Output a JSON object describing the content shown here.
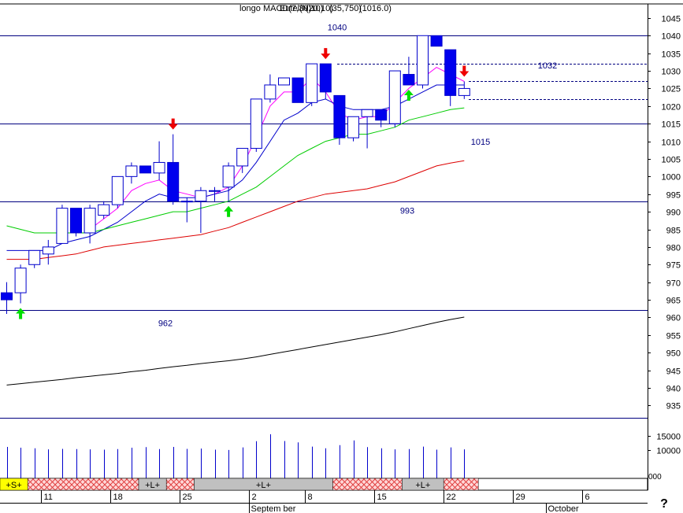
{
  "header": {
    "overlapping_titles": [
      "longo",
      "MACD(7,30,10)",
      "Eutel(N)",
      "(20,10)",
      "(35,750)",
      "(1016.0)"
    ]
  },
  "chart_data": {
    "type": "candlestick",
    "price_axis": {
      "ylim": [
        931.5,
        1049
      ],
      "ticks": [
        935,
        940,
        945,
        950,
        955,
        960,
        965,
        970,
        975,
        980,
        985,
        990,
        995,
        1000,
        1005,
        1010,
        1015,
        1020,
        1025,
        1030,
        1035,
        1040,
        1045
      ]
    },
    "volume_axis": {
      "ylim": [
        0,
        16500
      ],
      "ticks": [
        {
          "value": 10000,
          "label": "10000"
        },
        {
          "value": 15000,
          "label": "15000"
        }
      ],
      "corner_label": "000"
    },
    "x_axis": {
      "labels": [
        {
          "index": 3,
          "text": "11"
        },
        {
          "index": 8,
          "text": "18"
        },
        {
          "index": 13,
          "text": "25"
        },
        {
          "index": 18,
          "text": "2"
        },
        {
          "index": 22,
          "text": "8"
        },
        {
          "index": 27,
          "text": "15"
        },
        {
          "index": 32,
          "text": "22"
        },
        {
          "index": 37,
          "text": "29"
        },
        {
          "index": 42,
          "text": "6"
        }
      ],
      "months": [
        {
          "index": 18,
          "text": "Septem ber"
        },
        {
          "index": 39.4,
          "text": "October"
        }
      ]
    },
    "help_glyph": "?",
    "candles": [
      {
        "o": 967,
        "h": 970,
        "l": 961,
        "c": 965
      },
      {
        "o": 967,
        "h": 975,
        "l": 964,
        "c": 974
      },
      {
        "o": 975,
        "h": 979,
        "l": 974,
        "c": 979
      },
      {
        "o": 978,
        "h": 982,
        "l": 975,
        "c": 980
      },
      {
        "o": 981,
        "h": 992,
        "l": 981,
        "c": 991
      },
      {
        "o": 991,
        "h": 991,
        "l": 983,
        "c": 984
      },
      {
        "o": 984,
        "h": 992,
        "l": 981,
        "c": 991
      },
      {
        "o": 989,
        "h": 993,
        "l": 988,
        "c": 992
      },
      {
        "o": 992,
        "h": 1000,
        "l": 991,
        "c": 1000
      },
      {
        "o": 1000,
        "h": 1004,
        "l": 998,
        "c": 1003
      },
      {
        "o": 1003,
        "h": 1003,
        "l": 1001,
        "c": 1001
      },
      {
        "o": 1001,
        "h": 1010,
        "l": 999,
        "c": 1004
      },
      {
        "o": 1004,
        "h": 1012,
        "l": 992,
        "c": 993
      },
      {
        "o": 993,
        "h": 994,
        "l": 987,
        "c": 993
      },
      {
        "o": 993,
        "h": 997,
        "l": 984,
        "c": 996
      },
      {
        "o": 996,
        "h": 997,
        "l": 993,
        "c": 996
      },
      {
        "o": 997,
        "h": 1004,
        "l": 993,
        "c": 1003
      },
      {
        "o": 1003,
        "h": 1008,
        "l": 1001,
        "c": 1008
      },
      {
        "o": 1008,
        "h": 1022,
        "l": 1007,
        "c": 1022
      },
      {
        "o": 1022,
        "h": 1029,
        "l": 1021,
        "c": 1026
      },
      {
        "o": 1026,
        "h": 1028,
        "l": 1026,
        "c": 1028
      },
      {
        "o": 1028,
        "h": 1028,
        "l": 1021,
        "c": 1021
      },
      {
        "o": 1021,
        "h": 1032,
        "l": 1020,
        "c": 1032
      },
      {
        "o": 1032,
        "h": 1032,
        "l": 1022,
        "c": 1024
      },
      {
        "o": 1023,
        "h": 1023,
        "l": 1009,
        "c": 1011
      },
      {
        "o": 1011,
        "h": 1017,
        "l": 1010,
        "c": 1017
      },
      {
        "o": 1017,
        "h": 1019,
        "l": 1008,
        "c": 1019
      },
      {
        "o": 1019,
        "h": 1019,
        "l": 1014,
        "c": 1016
      },
      {
        "o": 1015,
        "h": 1030,
        "l": 1014,
        "c": 1030
      },
      {
        "o": 1029,
        "h": 1034,
        "l": 1026,
        "c": 1026
      },
      {
        "o": 1026,
        "h": 1040,
        "l": 1025,
        "c": 1040
      },
      {
        "o": 1040,
        "h": 1040,
        "l": 1037,
        "c": 1037
      },
      {
        "o": 1036,
        "h": 1036,
        "l": 1020,
        "c": 1023
      },
      {
        "o": 1023,
        "h": 1027,
        "l": 1022,
        "c": 1025
      }
    ],
    "volume": [
      11200,
      10900,
      10700,
      10300,
      10500,
      10400,
      10300,
      10200,
      10400,
      10900,
      11100,
      10400,
      11200,
      10500,
      10600,
      10200,
      10100,
      11000,
      13200,
      15700,
      13300,
      12800,
      11300,
      10700,
      11800,
      13500,
      11100,
      10700,
      10300,
      10400,
      11300,
      10200,
      11000,
      10300
    ],
    "ma_series": [
      {
        "color": "#ff00ff",
        "values": [
          null,
          null,
          null,
          null,
          null,
          null,
          985,
          988,
          991,
          996,
          998,
          999,
          996,
          995,
          994,
          995,
          997,
          1003,
          1011,
          1020,
          1024,
          1024,
          1028,
          1024,
          1018,
          1016,
          1017,
          1017,
          1021,
          1025,
          1028,
          1031,
          1029,
          1027
        ]
      },
      {
        "color": "#0000cc",
        "values": [
          979,
          979,
          979,
          979,
          981,
          982,
          983,
          985,
          987,
          990,
          993,
          995,
          994,
          994,
          994,
          995,
          996,
          999,
          1004,
          1010,
          1016,
          1018,
          1021,
          1022,
          1020,
          1019,
          1019,
          1019,
          1020,
          1022,
          1024,
          1026,
          1026,
          1026
        ]
      },
      {
        "color": "#00cc00",
        "values": [
          986,
          985,
          984,
          984,
          984,
          984,
          984,
          985,
          986,
          987,
          988,
          989,
          990,
          990,
          991,
          992,
          993,
          995,
          997,
          1000,
          1003,
          1006,
          1008,
          1010,
          1011,
          1012,
          1012,
          1013,
          1014,
          1016,
          1017,
          1018,
          1019,
          1019.5
        ]
      },
      {
        "color": "#dd0000",
        "values": [
          976.5,
          976.5,
          976.5,
          977,
          977.5,
          978,
          979,
          980,
          980.5,
          981,
          981.5,
          982,
          982.5,
          983,
          983.5,
          984.5,
          985.5,
          987,
          988.5,
          990,
          991.5,
          993,
          994,
          995,
          995.5,
          996,
          996.5,
          997.5,
          998.5,
          1000,
          1001.5,
          1003,
          1003.8,
          1004.5
        ]
      },
      {
        "color": "#000000",
        "values": [
          940.8,
          941.2,
          941.6,
          942,
          942.4,
          942.9,
          943.3,
          943.7,
          944.1,
          944.6,
          945,
          945.5,
          946,
          946.4,
          946.9,
          947.3,
          947.7,
          948.2,
          948.8,
          949.5,
          950.2,
          950.9,
          951.6,
          952.3,
          953,
          953.7,
          954.4,
          955.1,
          955.9,
          956.8,
          957.7,
          958.6,
          959.4,
          960.1
        ]
      }
    ],
    "horizontal_lines": [
      {
        "value": 1040,
        "label": "1040",
        "style": "solid"
      },
      {
        "value": 1032,
        "label": "1032",
        "style": "dashed"
      },
      {
        "value": 1015,
        "label": "1015",
        "style": "solid"
      },
      {
        "value": 993,
        "label": "993",
        "style": "solid"
      },
      {
        "value": 962,
        "label": "962",
        "style": "solid"
      }
    ],
    "extra_dashed_levels": [
      1027,
      1022
    ],
    "signals": [
      {
        "index": 1,
        "type": "buy"
      },
      {
        "index": 12,
        "type": "sell"
      },
      {
        "index": 16,
        "type": "buy"
      },
      {
        "index": 23,
        "type": "sell"
      },
      {
        "index": 29,
        "type": "buy"
      },
      {
        "index": 33,
        "type": "sell"
      }
    ],
    "signal_band": [
      {
        "from": 0,
        "to": 2,
        "kind": "label",
        "text": "+S+",
        "color": "#ffff00"
      },
      {
        "from": 2,
        "to": 10,
        "kind": "hatch"
      },
      {
        "from": 10,
        "to": 12,
        "kind": "label",
        "text": "+L+",
        "color": "#c0c0c0"
      },
      {
        "from": 12,
        "to": 14,
        "kind": "hatch"
      },
      {
        "from": 14,
        "to": 24,
        "kind": "label",
        "text": "+L+",
        "color": "#c0c0c0"
      },
      {
        "from": 24,
        "to": 29,
        "kind": "hatch"
      },
      {
        "from": 29,
        "to": 32,
        "kind": "label",
        "text": "+L+",
        "color": "#c0c0c0"
      },
      {
        "from": 32,
        "to": 34.5,
        "kind": "hatch"
      }
    ]
  }
}
